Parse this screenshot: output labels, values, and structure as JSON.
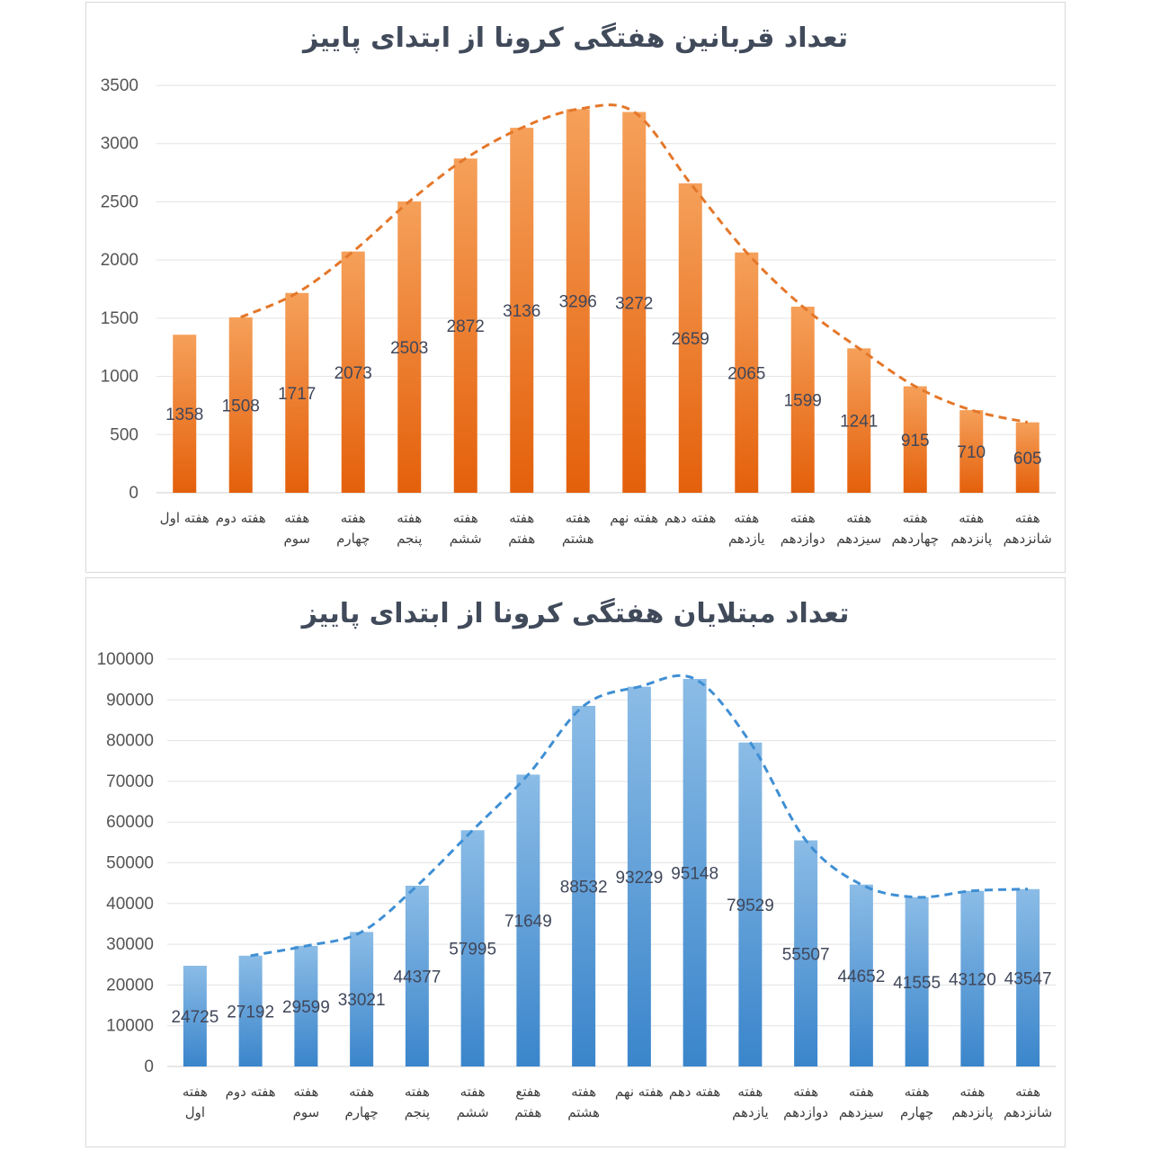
{
  "charts": {
    "deaths": {
      "chart_data": {
        "type": "bar",
        "title": "تعداد قربانین هفتگی کرونا از ابتدای پاییز",
        "categories": [
          [
            "هفته اول"
          ],
          [
            "هفته دوم"
          ],
          [
            "هفته",
            "سوم"
          ],
          [
            "هفته",
            "چهارم"
          ],
          [
            "هفته",
            "پنجم"
          ],
          [
            "هفته",
            "ششم"
          ],
          [
            "هفته",
            "هفتم"
          ],
          [
            "هفته",
            "هشتم"
          ],
          [
            "هفته نهم"
          ],
          [
            "هفته دهم"
          ],
          [
            "هفته",
            "یازدهم"
          ],
          [
            "هفته",
            "دوازدهم"
          ],
          [
            "هفته",
            "سیزدهم"
          ],
          [
            "هفته",
            "چهاردهم"
          ],
          [
            "هفته",
            "پانزدهم"
          ],
          [
            "هفته",
            "شانزدهم"
          ]
        ],
        "values": [
          1358,
          1508,
          1717,
          2073,
          2503,
          2872,
          3136,
          3296,
          3272,
          2659,
          2065,
          1599,
          1241,
          915,
          710,
          605
        ],
        "trendline": "dashed",
        "ylim": [
          0,
          3500
        ],
        "yticks": [
          0,
          500,
          1000,
          1500,
          2000,
          2500,
          3000,
          3500
        ],
        "grid": true,
        "colors": {
          "bar_top": "#f5a05a",
          "bar_bottom": "#e4600b",
          "trend": "#e4772a"
        }
      }
    },
    "cases": {
      "chart_data": {
        "type": "bar",
        "title": "تعداد مبتلایان هفتگی کرونا از ابتدای پاییز",
        "categories": [
          [
            "هفته",
            "اول"
          ],
          [
            "هفته دوم"
          ],
          [
            "هفته",
            "سوم"
          ],
          [
            "هفته",
            "چهارم"
          ],
          [
            "هفته",
            "پنجم"
          ],
          [
            "هفته",
            "ششم"
          ],
          [
            "هفتع",
            "هفتم"
          ],
          [
            "هفته",
            "هشتم"
          ],
          [
            "هفته نهم"
          ],
          [
            "هفته دهم"
          ],
          [
            "هفته",
            "یازدهم"
          ],
          [
            "هفته",
            "دوازدهم"
          ],
          [
            "هفته",
            "سیزدهم"
          ],
          [
            "هفته",
            "چهارم"
          ],
          [
            "هفته",
            "پانزدهم"
          ],
          [
            "هفته",
            "شانزدهم"
          ]
        ],
        "values": [
          24725,
          27192,
          29599,
          33021,
          44377,
          57995,
          71649,
          88532,
          93229,
          95148,
          79529,
          55507,
          44652,
          41555,
          43120,
          43547
        ],
        "trendline": "dashed",
        "ylim": [
          0,
          100000
        ],
        "yticks": [
          0,
          10000,
          20000,
          30000,
          40000,
          50000,
          60000,
          70000,
          80000,
          90000,
          100000
        ],
        "grid": true,
        "colors": {
          "bar_top": "#8bbce6",
          "bar_bottom": "#3a85cb",
          "trend": "#3f8fd4"
        }
      }
    }
  }
}
